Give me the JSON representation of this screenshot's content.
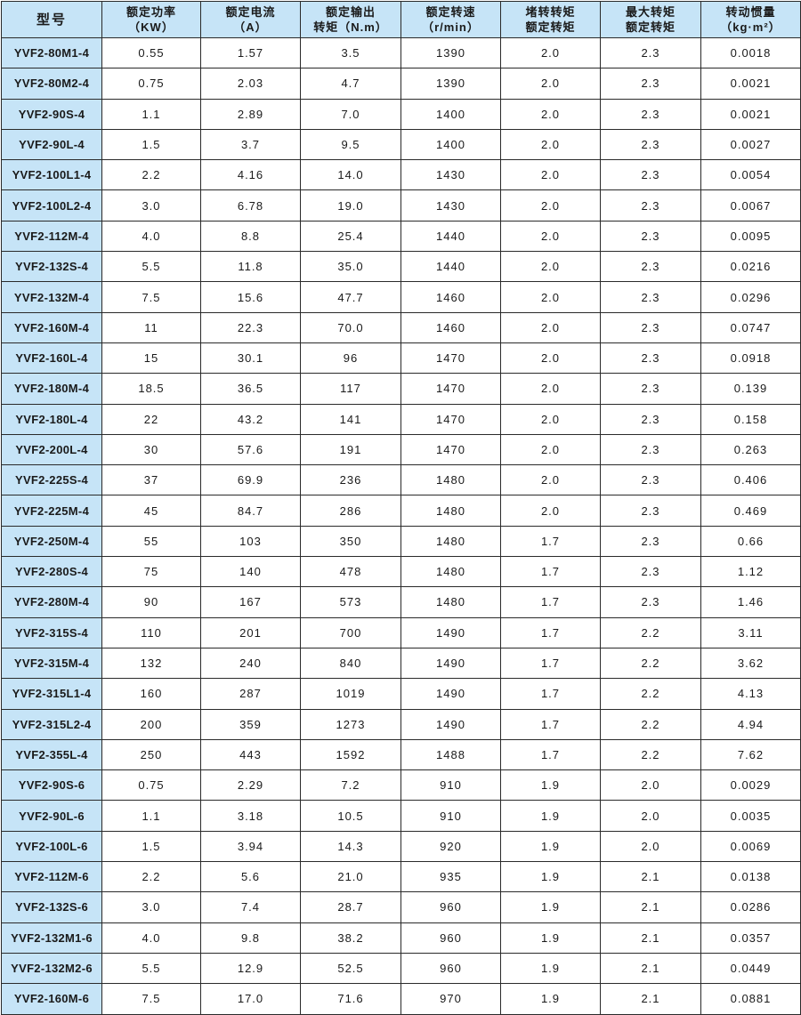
{
  "table": {
    "headers": [
      {
        "line1": "型号",
        "line2": ""
      },
      {
        "line1": "额定功率",
        "line2": "（KW）"
      },
      {
        "line1": "额定电流",
        "line2": "（A）"
      },
      {
        "line1": "额定输出",
        "line2": "转矩（N.m）"
      },
      {
        "line1": "额定转速",
        "line2": "（r/min）"
      },
      {
        "line1": "堵转转矩",
        "line2": "额定转矩"
      },
      {
        "line1": "最大转矩",
        "line2": "额定转矩"
      },
      {
        "line1": "转动惯量",
        "line2": "（kg·m²）"
      }
    ],
    "rows": [
      [
        "YVF2-80M1-4",
        "0.55",
        "1.57",
        "3.5",
        "1390",
        "2.0",
        "2.3",
        "0.0018"
      ],
      [
        "YVF2-80M2-4",
        "0.75",
        "2.03",
        "4.7",
        "1390",
        "2.0",
        "2.3",
        "0.0021"
      ],
      [
        "YVF2-90S-4",
        "1.1",
        "2.89",
        "7.0",
        "1400",
        "2.0",
        "2.3",
        "0.0021"
      ],
      [
        "YVF2-90L-4",
        "1.5",
        "3.7",
        "9.5",
        "1400",
        "2.0",
        "2.3",
        "0.0027"
      ],
      [
        "YVF2-100L1-4",
        "2.2",
        "4.16",
        "14.0",
        "1430",
        "2.0",
        "2.3",
        "0.0054"
      ],
      [
        "YVF2-100L2-4",
        "3.0",
        "6.78",
        "19.0",
        "1430",
        "2.0",
        "2.3",
        "0.0067"
      ],
      [
        "YVF2-112M-4",
        "4.0",
        "8.8",
        "25.4",
        "1440",
        "2.0",
        "2.3",
        "0.0095"
      ],
      [
        "YVF2-132S-4",
        "5.5",
        "11.8",
        "35.0",
        "1440",
        "2.0",
        "2.3",
        "0.0216"
      ],
      [
        "YVF2-132M-4",
        "7.5",
        "15.6",
        "47.7",
        "1460",
        "2.0",
        "2.3",
        "0.0296"
      ],
      [
        "YVF2-160M-4",
        "11",
        "22.3",
        "70.0",
        "1460",
        "2.0",
        "2.3",
        "0.0747"
      ],
      [
        "YVF2-160L-4",
        "15",
        "30.1",
        "96",
        "1470",
        "2.0",
        "2.3",
        "0.0918"
      ],
      [
        "YVF2-180M-4",
        "18.5",
        "36.5",
        "117",
        "1470",
        "2.0",
        "2.3",
        "0.139"
      ],
      [
        "YVF2-180L-4",
        "22",
        "43.2",
        "141",
        "1470",
        "2.0",
        "2.3",
        "0.158"
      ],
      [
        "YVF2-200L-4",
        "30",
        "57.6",
        "191",
        "1470",
        "2.0",
        "2.3",
        "0.263"
      ],
      [
        "YVF2-225S-4",
        "37",
        "69.9",
        "236",
        "1480",
        "2.0",
        "2.3",
        "0.406"
      ],
      [
        "YVF2-225M-4",
        "45",
        "84.7",
        "286",
        "1480",
        "2.0",
        "2.3",
        "0.469"
      ],
      [
        "YVF2-250M-4",
        "55",
        "103",
        "350",
        "1480",
        "1.7",
        "2.3",
        "0.66"
      ],
      [
        "YVF2-280S-4",
        "75",
        "140",
        "478",
        "1480",
        "1.7",
        "2.3",
        "1.12"
      ],
      [
        "YVF2-280M-4",
        "90",
        "167",
        "573",
        "1480",
        "1.7",
        "2.3",
        "1.46"
      ],
      [
        "YVF2-315S-4",
        "110",
        "201",
        "700",
        "1490",
        "1.7",
        "2.2",
        "3.11"
      ],
      [
        "YVF2-315M-4",
        "132",
        "240",
        "840",
        "1490",
        "1.7",
        "2.2",
        "3.62"
      ],
      [
        "YVF2-315L1-4",
        "160",
        "287",
        "1019",
        "1490",
        "1.7",
        "2.2",
        "4.13"
      ],
      [
        "YVF2-315L2-4",
        "200",
        "359",
        "1273",
        "1490",
        "1.7",
        "2.2",
        "4.94"
      ],
      [
        "YVF2-355L-4",
        "250",
        "443",
        "1592",
        "1488",
        "1.7",
        "2.2",
        "7.62"
      ],
      [
        "YVF2-90S-6",
        "0.75",
        "2.29",
        "7.2",
        "910",
        "1.9",
        "2.0",
        "0.0029"
      ],
      [
        "YVF2-90L-6",
        "1.1",
        "3.18",
        "10.5",
        "910",
        "1.9",
        "2.0",
        "0.0035"
      ],
      [
        "YVF2-100L-6",
        "1.5",
        "3.94",
        "14.3",
        "920",
        "1.9",
        "2.0",
        "0.0069"
      ],
      [
        "YVF2-112M-6",
        "2.2",
        "5.6",
        "21.0",
        "935",
        "1.9",
        "2.1",
        "0.0138"
      ],
      [
        "YVF2-132S-6",
        "3.0",
        "7.4",
        "28.7",
        "960",
        "1.9",
        "2.1",
        "0.0286"
      ],
      [
        "YVF2-132M1-6",
        "4.0",
        "9.8",
        "38.2",
        "960",
        "1.9",
        "2.1",
        "0.0357"
      ],
      [
        "YVF2-132M2-6",
        "5.5",
        "12.9",
        "52.5",
        "960",
        "1.9",
        "2.1",
        "0.0449"
      ],
      [
        "YVF2-160M-6",
        "7.5",
        "17.0",
        "71.6",
        "970",
        "1.9",
        "2.1",
        "0.0881"
      ]
    ]
  },
  "colors": {
    "header_bg": "#c6e4f7",
    "border": "#2a2a2a"
  }
}
